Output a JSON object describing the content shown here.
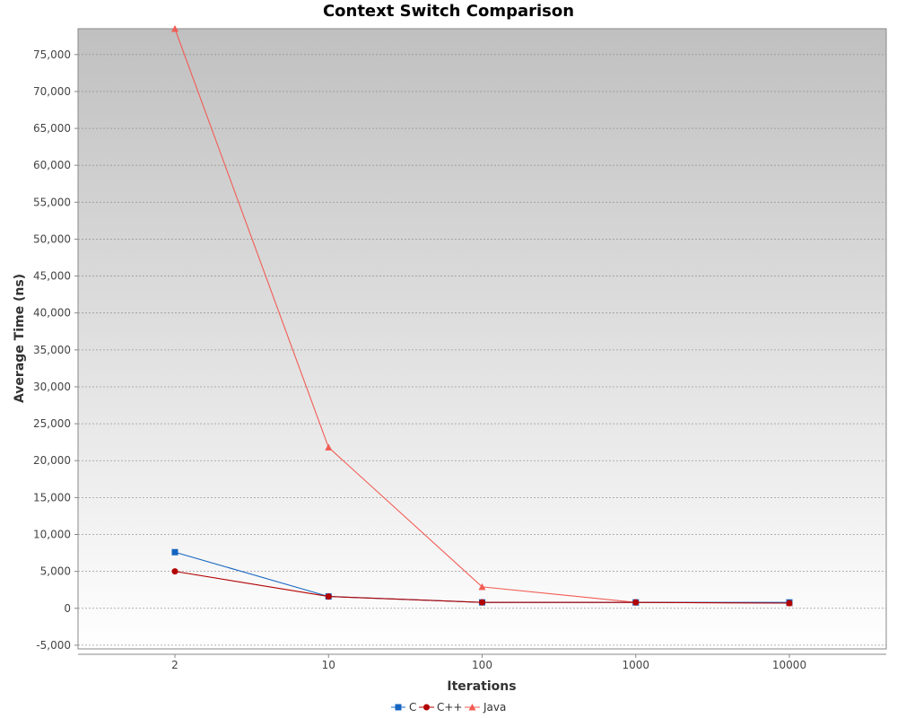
{
  "chart_data": {
    "type": "line",
    "title": "Context Switch Comparison",
    "xlabel": "Iterations",
    "ylabel": "Average Time (ns)",
    "categories": [
      "2",
      "10",
      "100",
      "1000",
      "10000"
    ],
    "ylim": [
      -5500,
      78500
    ],
    "yticks": [
      -5000,
      0,
      5000,
      10000,
      15000,
      20000,
      25000,
      30000,
      35000,
      40000,
      45000,
      50000,
      55000,
      60000,
      65000,
      70000,
      75000
    ],
    "ytick_labels": [
      "-5,000",
      "0",
      "5,000",
      "10,000",
      "15,000",
      "20,000",
      "25,000",
      "30,000",
      "35,000",
      "40,000",
      "45,000",
      "50,000",
      "55,000",
      "60,000",
      "65,000",
      "70,000",
      "75,000"
    ],
    "grid": true,
    "legend_position": "bottom",
    "series": [
      {
        "name": "C",
        "color": "#1565c0",
        "marker": "square",
        "values": [
          7600,
          1600,
          800,
          800,
          800
        ]
      },
      {
        "name": "C++",
        "color": "#b30000",
        "marker": "circle",
        "values": [
          5000,
          1600,
          800,
          800,
          700
        ]
      },
      {
        "name": "Java",
        "color": "#f25c54",
        "marker": "triangle",
        "values": [
          78500,
          21800,
          2900,
          800,
          700
        ]
      }
    ]
  }
}
